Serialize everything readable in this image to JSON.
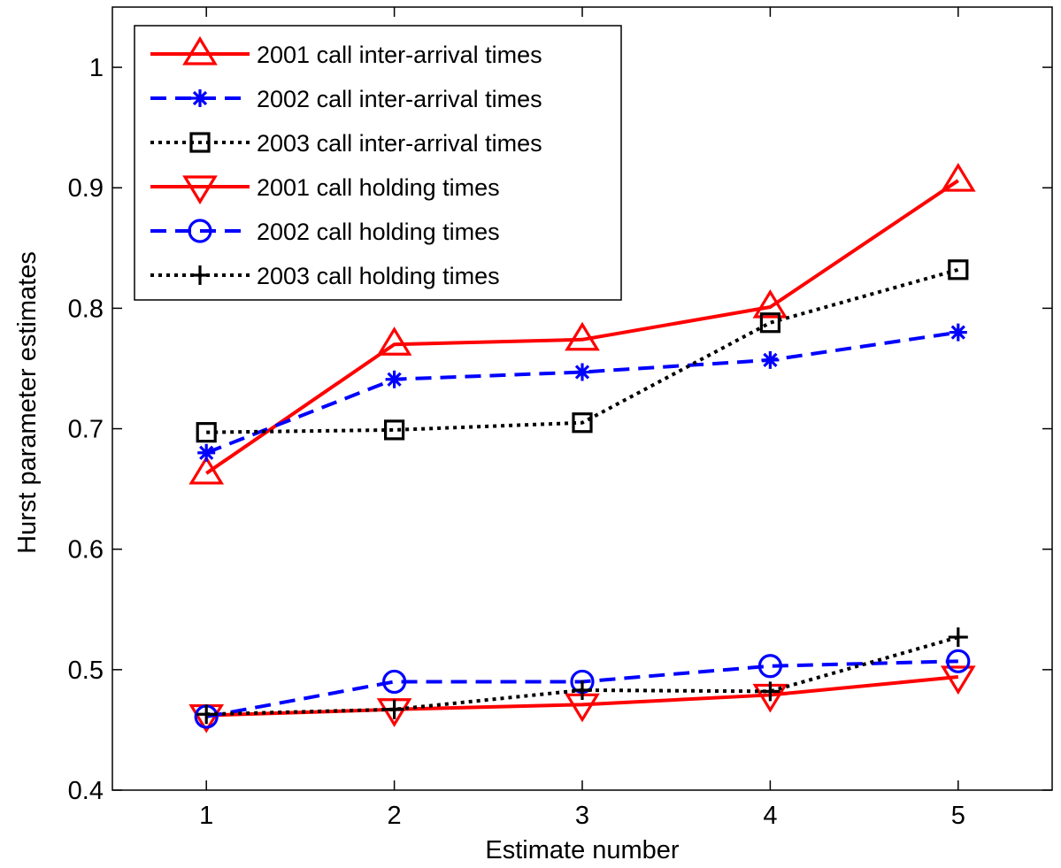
{
  "chart_data": {
    "type": "line",
    "title": "",
    "xlabel": "Estimate number",
    "ylabel": "Hurst parameter estimates",
    "x": [
      1,
      2,
      3,
      4,
      5
    ],
    "xlim": [
      0.5,
      5.5
    ],
    "ylim": [
      0.4,
      1.05
    ],
    "xticks": [
      "1",
      "2",
      "3",
      "4",
      "5"
    ],
    "yticks": [
      "0.4",
      "0.5",
      "0.6",
      "0.7",
      "0.8",
      "0.9",
      "1"
    ],
    "grid": false,
    "legend_position": "top-left",
    "series": [
      {
        "name": "2001 call inter-arrival times",
        "values": [
          0.663,
          0.77,
          0.774,
          0.801,
          0.906
        ],
        "color": "#ff0000",
        "dash": "solid",
        "marker": "triangle-up"
      },
      {
        "name": "2002 call inter-arrival times",
        "values": [
          0.68,
          0.741,
          0.747,
          0.757,
          0.78
        ],
        "color": "#0000ff",
        "dash": "dashed",
        "marker": "asterisk"
      },
      {
        "name": "2003 call inter-arrival times",
        "values": [
          0.697,
          0.699,
          0.705,
          0.788,
          0.832
        ],
        "color": "#000000",
        "dash": "dotted",
        "marker": "square"
      },
      {
        "name": "2001 call holding times",
        "values": [
          0.462,
          0.467,
          0.471,
          0.479,
          0.494
        ],
        "color": "#ff0000",
        "dash": "solid",
        "marker": "triangle-down"
      },
      {
        "name": "2002 call holding times",
        "values": [
          0.461,
          0.49,
          0.49,
          0.503,
          0.507
        ],
        "color": "#0000ff",
        "dash": "dashed",
        "marker": "circle"
      },
      {
        "name": "2003 call holding times",
        "values": [
          0.463,
          0.467,
          0.483,
          0.482,
          0.527
        ],
        "color": "#000000",
        "dash": "dotted",
        "marker": "plus"
      }
    ]
  }
}
